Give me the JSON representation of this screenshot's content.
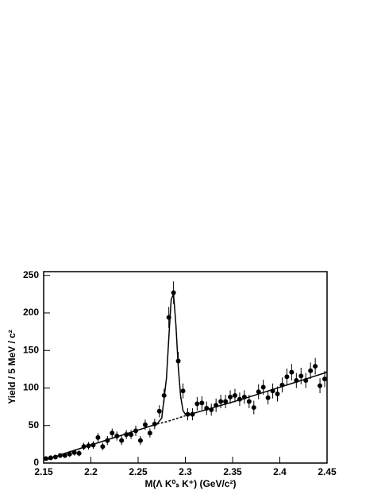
{
  "chart_data": {
    "type": "scatter",
    "x_label": "M(Λ K⁰ₛ K⁺) (GeV/c²)",
    "y_label": "Yield / 5 MeV / c²",
    "xlim": [
      2.15,
      2.45
    ],
    "ylim": [
      0,
      255
    ],
    "xticks": [
      2.15,
      2.2,
      2.25,
      2.3,
      2.35,
      2.4,
      2.45
    ],
    "yticks": [
      0,
      50,
      100,
      150,
      200,
      250
    ],
    "color": "#000000",
    "x": [
      2.1525,
      2.1575,
      2.1625,
      2.1675,
      2.1725,
      2.1775,
      2.1825,
      2.1875,
      2.1925,
      2.1975,
      2.2025,
      2.2075,
      2.2125,
      2.2175,
      2.2225,
      2.2275,
      2.2325,
      2.2375,
      2.2425,
      2.2475,
      2.2525,
      2.2575,
      2.2625,
      2.2675,
      2.2725,
      2.2775,
      2.2825,
      2.2875,
      2.2925,
      2.2975,
      2.3025,
      2.3075,
      2.3125,
      2.3175,
      2.3225,
      2.3275,
      2.3325,
      2.3375,
      2.3425,
      2.3475,
      2.3525,
      2.3575,
      2.3625,
      2.3675,
      2.3725,
      2.3775,
      2.3825,
      2.3875,
      2.3925,
      2.3975,
      2.4025,
      2.4075,
      2.4125,
      2.4175,
      2.4225,
      2.4275,
      2.4325,
      2.4375,
      2.4425,
      2.4475
    ],
    "values": [
      6,
      7,
      8,
      10,
      10,
      12,
      14,
      13,
      22,
      23,
      24,
      34,
      22,
      30,
      40,
      36,
      30,
      38,
      38,
      43,
      30,
      51,
      40,
      52,
      69,
      90,
      194,
      227,
      136,
      96,
      65,
      65,
      79,
      80,
      73,
      71,
      77,
      82,
      82,
      88,
      90,
      85,
      88,
      82,
      74,
      95,
      101,
      87,
      96,
      92,
      104,
      115,
      121,
      110,
      116,
      110,
      123,
      129,
      103,
      112
    ],
    "errors": [
      3,
      3,
      3,
      3,
      3,
      4,
      4,
      4,
      5,
      5,
      5,
      6,
      5,
      6,
      6,
      6,
      6,
      6,
      6,
      7,
      6,
      7,
      6,
      7,
      8,
      9,
      14,
      15,
      12,
      10,
      8,
      8,
      9,
      9,
      9,
      8,
      9,
      9,
      9,
      9,
      9,
      9,
      9,
      9,
      9,
      10,
      10,
      9,
      10,
      10,
      10,
      11,
      11,
      10,
      11,
      10,
      11,
      11,
      10,
      11
    ],
    "fit": {
      "x": [
        2.155,
        2.17,
        2.19,
        2.21,
        2.23,
        2.25,
        2.26,
        2.27,
        2.275,
        2.28,
        2.2825,
        2.285,
        2.2875,
        2.29,
        2.2925,
        2.295,
        2.2975,
        2.3,
        2.305,
        2.33,
        2.36,
        2.39,
        2.42,
        2.45
      ],
      "y": [
        5,
        12,
        20,
        28,
        36,
        44,
        48,
        52,
        60,
        113,
        167,
        218,
        225,
        184,
        128,
        89,
        70,
        65,
        65,
        74,
        85,
        97,
        109,
        121
      ]
    },
    "background": {
      "x": [
        2.27,
        2.28,
        2.29,
        2.3
      ],
      "y": [
        52,
        55,
        59,
        63
      ]
    }
  }
}
